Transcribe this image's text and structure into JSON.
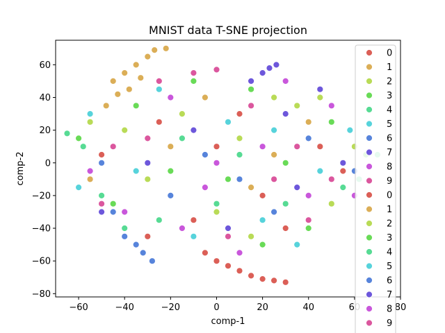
{
  "chart_data": {
    "type": "scatter",
    "title": "MNIST data T-SNE projection",
    "xlabel": "comp-1",
    "ylabel": "comp-2",
    "xlim": [
      -70,
      80
    ],
    "ylim": [
      -82,
      75
    ],
    "xticks": [
      -60,
      -40,
      -20,
      0,
      20,
      40,
      60,
      80
    ],
    "yticks": [
      -80,
      -60,
      -40,
      -20,
      0,
      20,
      40,
      60
    ],
    "grid": false,
    "legend_position": "right",
    "legend": [
      {
        "label": "0",
        "color": "#db5f57"
      },
      {
        "label": "1",
        "color": "#dbae57"
      },
      {
        "label": "2",
        "color": "#b9db57"
      },
      {
        "label": "3",
        "color": "#69db57"
      },
      {
        "label": "4",
        "color": "#57db94"
      },
      {
        "label": "5",
        "color": "#57d3db"
      },
      {
        "label": "6",
        "color": "#5784db"
      },
      {
        "label": "7",
        "color": "#6d57db"
      },
      {
        "label": "8",
        "color": "#c957db"
      },
      {
        "label": "9",
        "color": "#db579e"
      },
      {
        "label": "0",
        "color": "#db5f57"
      },
      {
        "label": "1",
        "color": "#dbae57"
      },
      {
        "label": "2",
        "color": "#b9db57"
      },
      {
        "label": "3",
        "color": "#69db57"
      },
      {
        "label": "4",
        "color": "#57db94"
      },
      {
        "label": "5",
        "color": "#57d3db"
      },
      {
        "label": "6",
        "color": "#5784db"
      },
      {
        "label": "7",
        "color": "#6d57db"
      },
      {
        "label": "8",
        "color": "#c957db"
      },
      {
        "label": "9",
        "color": "#db579e"
      }
    ],
    "series": [
      {
        "name": "0",
        "color": "#db5f57",
        "points": [
          [
            -5,
            -55
          ],
          [
            0,
            -60
          ],
          [
            5,
            -63
          ],
          [
            10,
            -66
          ],
          [
            15,
            -69
          ],
          [
            20,
            -71
          ],
          [
            25,
            -72
          ],
          [
            30,
            -73
          ],
          [
            -30,
            -45
          ],
          [
            -10,
            -35
          ],
          [
            20,
            -20
          ],
          [
            45,
            10
          ],
          [
            -50,
            5
          ],
          [
            10,
            30
          ],
          [
            30,
            -40
          ],
          [
            -25,
            25
          ],
          [
            55,
            -5
          ],
          [
            0,
            10
          ]
        ]
      },
      {
        "name": "1",
        "color": "#dbae57",
        "points": [
          [
            -45,
            50
          ],
          [
            -40,
            55
          ],
          [
            -35,
            60
          ],
          [
            -30,
            65
          ],
          [
            -27,
            69
          ],
          [
            -22,
            70
          ],
          [
            -38,
            45
          ],
          [
            -43,
            42
          ],
          [
            -33,
            52
          ],
          [
            -48,
            35
          ],
          [
            -20,
            10
          ],
          [
            15,
            -15
          ],
          [
            40,
            25
          ],
          [
            -5,
            40
          ],
          [
            25,
            5
          ],
          [
            -55,
            -10
          ]
        ]
      },
      {
        "name": "2",
        "color": "#b9db57",
        "points": [
          [
            -40,
            20
          ],
          [
            -15,
            30
          ],
          [
            10,
            15
          ],
          [
            35,
            35
          ],
          [
            50,
            -25
          ],
          [
            -30,
            -10
          ],
          [
            0,
            -30
          ],
          [
            25,
            40
          ],
          [
            45,
            40
          ],
          [
            -55,
            25
          ],
          [
            15,
            -45
          ],
          [
            60,
            10
          ]
        ]
      },
      {
        "name": "3",
        "color": "#69db57",
        "points": [
          [
            -20,
            -5
          ],
          [
            5,
            -10
          ],
          [
            30,
            0
          ],
          [
            -45,
            -25
          ],
          [
            15,
            45
          ],
          [
            50,
            25
          ],
          [
            -10,
            50
          ],
          [
            40,
            -40
          ],
          [
            -60,
            15
          ],
          [
            20,
            -50
          ],
          [
            65,
            5
          ],
          [
            -35,
            35
          ]
        ]
      },
      {
        "name": "4",
        "color": "#57db94",
        "points": [
          [
            -65,
            18
          ],
          [
            -58,
            10
          ],
          [
            -50,
            -20
          ],
          [
            -25,
            -35
          ],
          [
            0,
            -25
          ],
          [
            30,
            -25
          ],
          [
            55,
            -15
          ],
          [
            62,
            -10
          ],
          [
            -15,
            15
          ],
          [
            10,
            5
          ],
          [
            70,
            5
          ],
          [
            -40,
            -40
          ]
        ]
      },
      {
        "name": "5",
        "color": "#57d3db",
        "points": [
          [
            -55,
            30
          ],
          [
            -35,
            -5
          ],
          [
            -10,
            -45
          ],
          [
            20,
            -35
          ],
          [
            35,
            -50
          ],
          [
            45,
            -5
          ],
          [
            58,
            20
          ],
          [
            -25,
            45
          ],
          [
            5,
            25
          ],
          [
            -60,
            -15
          ],
          [
            25,
            20
          ]
        ]
      },
      {
        "name": "6",
        "color": "#5784db",
        "points": [
          [
            -35,
            -50
          ],
          [
            -32,
            -55
          ],
          [
            -28,
            -60
          ],
          [
            -40,
            -45
          ],
          [
            -50,
            0
          ],
          [
            -20,
            -20
          ],
          [
            10,
            -10
          ],
          [
            40,
            15
          ],
          [
            60,
            -5
          ],
          [
            -5,
            5
          ],
          [
            25,
            -30
          ],
          [
            -45,
            -30
          ]
        ]
      },
      {
        "name": "7",
        "color": "#6d57db",
        "points": [
          [
            20,
            55
          ],
          [
            23,
            58
          ],
          [
            26,
            60
          ],
          [
            15,
            50
          ],
          [
            30,
            30
          ],
          [
            45,
            45
          ],
          [
            -10,
            20
          ],
          [
            5,
            -40
          ],
          [
            -30,
            0
          ],
          [
            55,
            0
          ],
          [
            35,
            -15
          ],
          [
            -50,
            -30
          ]
        ]
      },
      {
        "name": "8",
        "color": "#c957db",
        "points": [
          [
            -20,
            40
          ],
          [
            0,
            0
          ],
          [
            20,
            10
          ],
          [
            40,
            -20
          ],
          [
            -40,
            -30
          ],
          [
            -15,
            -40
          ],
          [
            10,
            -55
          ],
          [
            50,
            35
          ],
          [
            -55,
            -5
          ],
          [
            30,
            50
          ],
          [
            -5,
            -15
          ],
          [
            60,
            -20
          ]
        ]
      },
      {
        "name": "9",
        "color": "#db579e",
        "points": [
          [
            -10,
            55
          ],
          [
            0,
            57
          ],
          [
            -25,
            50
          ],
          [
            15,
            35
          ],
          [
            35,
            10
          ],
          [
            50,
            -10
          ],
          [
            -30,
            15
          ],
          [
            -50,
            -25
          ],
          [
            5,
            -45
          ],
          [
            25,
            -10
          ],
          [
            -45,
            10
          ],
          [
            40,
            -35
          ]
        ]
      }
    ]
  }
}
